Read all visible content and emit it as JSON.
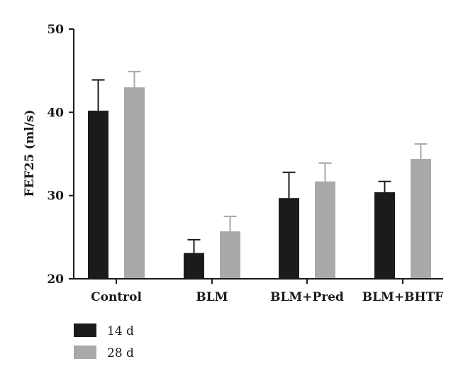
{
  "chart_data": {
    "type": "bar",
    "ylabel": "FEF25 (ml/s)",
    "ylim": [
      20,
      50
    ],
    "yticks": [
      20,
      30,
      40,
      50
    ],
    "categories": [
      "Control",
      "BLM",
      "BLM+Pred",
      "BLM+BHTF"
    ],
    "series": [
      {
        "name": "14 d",
        "color": "#1b1b1b",
        "values": [
          40.2,
          23.1,
          29.7,
          30.4
        ],
        "errors": [
          3.7,
          1.6,
          3.1,
          1.3
        ]
      },
      {
        "name": "28 d",
        "color": "#a9a9a9",
        "values": [
          43.0,
          25.7,
          31.7,
          34.4
        ],
        "errors": [
          1.9,
          1.8,
          2.2,
          1.8
        ]
      }
    ],
    "error_bars": "upper",
    "legend_position": "bottom-left",
    "grid": false
  }
}
